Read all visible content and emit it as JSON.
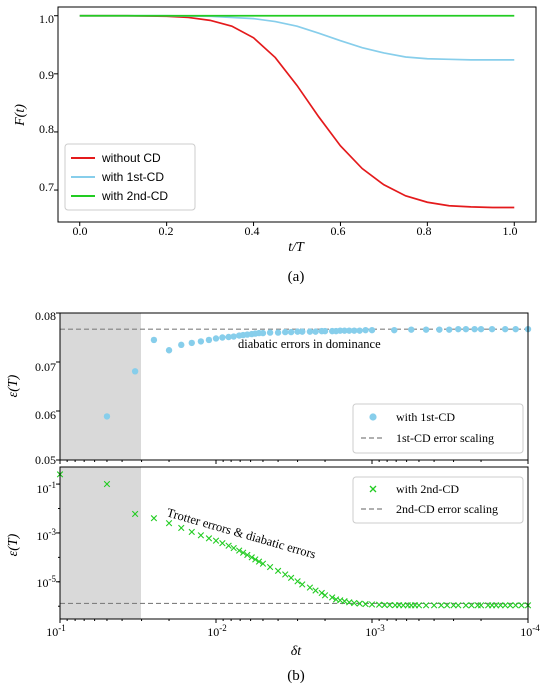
{
  "chart_data": [
    {
      "type": "line",
      "xlabel": "t/T",
      "ylabel": "F(t)",
      "xlim": [
        -0.05,
        1.05
      ],
      "ylim": [
        0.645,
        1.015
      ],
      "xticks": [
        "0.0",
        "0.2",
        "0.4",
        "0.6",
        "0.8",
        "1.0"
      ],
      "yticks": [
        "0.7",
        "0.8",
        "0.9",
        "1.0"
      ],
      "grid": false,
      "legend_position": "lower-left",
      "caption": "(a)",
      "series": [
        {
          "name": "without CD",
          "color": "#e41a1c",
          "x": [
            0,
            0.1,
            0.2,
            0.25,
            0.3,
            0.35,
            0.4,
            0.45,
            0.5,
            0.55,
            0.6,
            0.65,
            0.7,
            0.75,
            0.8,
            0.85,
            0.9,
            0.95,
            1.0
          ],
          "y": [
            1.0,
            1.0,
            0.999,
            0.997,
            0.992,
            0.982,
            0.962,
            0.928,
            0.88,
            0.826,
            0.776,
            0.737,
            0.709,
            0.69,
            0.679,
            0.673,
            0.671,
            0.67,
            0.67
          ]
        },
        {
          "name": "with 1st-CD",
          "color": "#87ceeb",
          "x": [
            0,
            0.2,
            0.3,
            0.4,
            0.45,
            0.5,
            0.55,
            0.6,
            0.65,
            0.7,
            0.75,
            0.8,
            0.85,
            0.9,
            0.95,
            1.0
          ],
          "y": [
            1.0,
            1.0,
            0.999,
            0.995,
            0.99,
            0.982,
            0.97,
            0.957,
            0.945,
            0.936,
            0.929,
            0.926,
            0.925,
            0.924,
            0.924,
            0.924
          ]
        },
        {
          "name": "with 2nd-CD",
          "color": "#22cc22",
          "x": [
            0,
            1.0
          ],
          "y": [
            1.0,
            1.0
          ]
        }
      ]
    },
    {
      "type": "scatter",
      "xlabel": "",
      "ylabel": "ε(T)",
      "xscale": "log",
      "x_reversed": true,
      "xlim": [
        0.1,
        0.0001
      ],
      "ylim": [
        0.05,
        0.08
      ],
      "yticks": [
        "0.05",
        "0.06",
        "0.07",
        "0.08"
      ],
      "shaded_region_x": [
        0.1,
        0.03
      ],
      "legend_position": "lower-right",
      "annotation": "diabatic errors in dominance",
      "series": [
        {
          "name": "with 1st-CD",
          "color": "#87ceeb",
          "marker": "circle",
          "x": [
            0.05,
            0.033,
            0.025,
            0.02,
            0.0167,
            0.0143,
            0.0125,
            0.0111,
            0.01,
            0.0091,
            0.0083,
            0.0077,
            0.0071,
            0.0067,
            0.0063,
            0.0059,
            0.0056,
            0.0053,
            0.005,
            0.0045,
            0.004,
            0.0036,
            0.0033,
            0.003,
            0.0028,
            0.0025,
            0.0023,
            0.0021,
            0.002,
            0.0018,
            0.0017,
            0.0016,
            0.0015,
            0.0014,
            0.0013,
            0.0012,
            0.0011,
            0.001,
            0.00072,
            0.00056,
            0.00045,
            0.00037,
            0.00032,
            0.00028,
            0.00025,
            0.00022,
            0.0002,
            0.00017,
            0.00014,
            0.00012,
            0.0001
          ],
          "y": [
            0.0589,
            0.0681,
            0.0745,
            0.0724,
            0.0735,
            0.0739,
            0.0742,
            0.0745,
            0.0748,
            0.075,
            0.0751,
            0.0752,
            0.0754,
            0.0755,
            0.0756,
            0.0757,
            0.0758,
            0.0759,
            0.0759,
            0.076,
            0.076,
            0.0761,
            0.0761,
            0.0762,
            0.0762,
            0.0762,
            0.0762,
            0.0763,
            0.0763,
            0.0763,
            0.0763,
            0.0764,
            0.0764,
            0.0764,
            0.0764,
            0.0764,
            0.0765,
            0.0765,
            0.0765,
            0.0766,
            0.0766,
            0.0766,
            0.0766,
            0.0767,
            0.0767,
            0.0767,
            0.0767,
            0.0767,
            0.0767,
            0.0767,
            0.0767
          ]
        },
        {
          "name": "1st-CD error scaling",
          "color": "#808080",
          "style": "dashed",
          "x": [
            0.1,
            0.0001
          ],
          "y": [
            0.0767,
            0.0767
          ]
        }
      ]
    },
    {
      "type": "scatter",
      "xlabel": "δt",
      "ylabel": "ε(T)",
      "xscale": "log",
      "yscale": "log",
      "x_reversed": true,
      "xlim": [
        0.1,
        0.0001
      ],
      "ylim": [
        3e-07,
        0.5
      ],
      "xticks": [
        "10",
        "10",
        "10",
        "10"
      ],
      "xtick_exponents": [
        "-1",
        "-2",
        "-3",
        "-4"
      ],
      "yticks": [
        "10",
        "10",
        "10"
      ],
      "ytick_exponents": [
        "-1",
        "-3",
        "-5"
      ],
      "shaded_region_x": [
        0.1,
        0.03
      ],
      "legend_position": "upper-right",
      "annotation": "Trotter errors & diabatic errors",
      "caption": "(b)",
      "series": [
        {
          "name": "with 2nd-CD",
          "color": "#22cc22",
          "marker": "x",
          "x": [
            0.1,
            0.05,
            0.033,
            0.025,
            0.02,
            0.0167,
            0.0143,
            0.0125,
            0.0111,
            0.01,
            0.0091,
            0.0083,
            0.0077,
            0.0071,
            0.0067,
            0.0063,
            0.0059,
            0.0056,
            0.0053,
            0.005,
            0.0045,
            0.004,
            0.0036,
            0.0033,
            0.003,
            0.0028,
            0.0025,
            0.0023,
            0.0021,
            0.002,
            0.0018,
            0.0017,
            0.0016,
            0.0015,
            0.0014,
            0.0013,
            0.0012,
            0.0011,
            0.001,
            0.0009,
            0.00083,
            0.00077,
            0.00071,
            0.00067,
            0.00063,
            0.00059,
            0.00056,
            0.00053,
            0.0005,
            0.00045,
            0.0004,
            0.00036,
            0.00033,
            0.0003,
            0.00028,
            0.00025,
            0.00023,
            0.00021,
            0.0002,
            0.00018,
            0.00017,
            0.00016,
            0.00015,
            0.00014,
            0.00013,
            0.00012,
            0.00011,
            0.0001
          ],
          "y": [
            0.25,
            0.1,
            0.006,
            0.004,
            0.0025,
            0.0016,
            0.0011,
            0.0008,
            0.0006,
            0.00048,
            0.00038,
            0.0003,
            0.00024,
            0.00019,
            0.000155,
            0.000125,
            0.0001,
            8.2e-05,
            6.7e-05,
            5.5e-05,
            4e-05,
            2.8e-05,
            2e-05,
            1.45e-05,
            1.05e-05,
            7.8e-06,
            5.8e-06,
            4.4e-06,
            3.5e-06,
            2.8e-06,
            2.3e-06,
            1.9e-06,
            1.75e-06,
            1.6e-06,
            1.45e-06,
            1.35e-06,
            1.28e-06,
            1.22e-06,
            1.18e-06,
            1.15e-06,
            1.12e-06,
            1.11e-06,
            1.1e-06,
            1.1e-06,
            1.09e-06,
            1.09e-06,
            1.09e-06,
            1.09e-06,
            1.09e-06,
            1.09e-06,
            1.09e-06,
            1.09e-06,
            1.09e-06,
            1.09e-06,
            1.09e-06,
            1.09e-06,
            1.09e-06,
            1.09e-06,
            1.09e-06,
            1.09e-06,
            1.09e-06,
            1.09e-06,
            1.09e-06,
            1.09e-06,
            1.09e-06,
            1.09e-06,
            1.09e-06,
            1.09e-06
          ]
        },
        {
          "name": "2nd-CD error scaling",
          "color": "#808080",
          "style": "dashed",
          "x": [
            0.1,
            0.0001
          ],
          "y": [
            1.3e-06,
            1.3e-06
          ]
        }
      ]
    }
  ]
}
